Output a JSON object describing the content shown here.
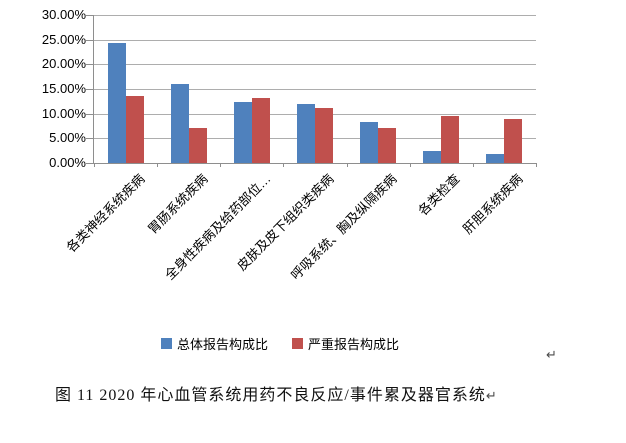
{
  "chart_data": {
    "type": "bar",
    "title": "",
    "categories": [
      "各类神经系统疾病",
      "胃肠系统疾病",
      "全身性疾病及给药部位…",
      "皮肤及皮下组织类疾病",
      "呼吸系统、胸及纵隔疾病",
      "各类检查",
      "肝胆系统疾病"
    ],
    "series": [
      {
        "name": "总体报告构成比",
        "color": "#4F81BD",
        "values": [
          24.4,
          16.1,
          12.3,
          12.0,
          8.4,
          2.4,
          1.8
        ]
      },
      {
        "name": "严重报告构成比",
        "color": "#C0504D",
        "values": [
          13.5,
          7.1,
          13.1,
          11.2,
          7.1,
          9.5,
          8.9
        ]
      }
    ],
    "ylim": [
      0,
      30
    ],
    "ytick_step": 5,
    "ytick_labels": [
      "30.00%",
      "25.00%",
      "20.00%",
      "15.00%",
      "10.00%",
      "5.00%",
      "0.00%"
    ],
    "grid": "horizontal",
    "legend_position": "bottom"
  },
  "legend": {
    "items": [
      "总体报告构成比",
      "严重报告构成比"
    ]
  },
  "caption": {
    "text": "图 11  2020 年心血管系统用药不良反应/事件累及器官系统",
    "end_mark": "↵"
  },
  "paragraph_mark": "↵",
  "colors": {
    "series_blue": "#4F81BD",
    "series_red": "#C0504D",
    "gridline": "#adadad",
    "axis": "#8e8e8e",
    "text": "#000000"
  }
}
